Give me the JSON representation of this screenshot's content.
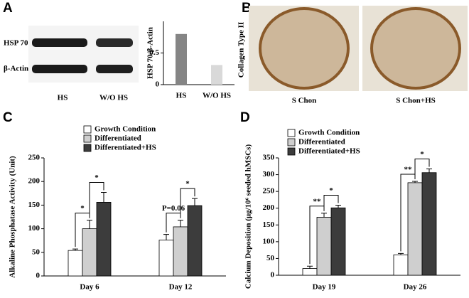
{
  "panel_labels": [
    "A",
    "B",
    "C",
    "D"
  ],
  "blot": {
    "rows": [
      "HSP 70",
      "β-Actin"
    ],
    "lanes": [
      "HS",
      "W/O HS"
    ]
  },
  "images": {
    "ylabel": "Collagen Type II",
    "captions": [
      "S Chon",
      "S Chon+HS"
    ]
  },
  "chart_data": [
    {
      "type": "bar",
      "ylabel": "HSP 70/β-Actin",
      "categories": [
        "HS",
        "W/O HS"
      ],
      "values": [
        0.8,
        0.31
      ],
      "colors": [
        "#858585",
        "#d9d9d9"
      ],
      "ylim": [
        0,
        1
      ],
      "yticks": [
        0,
        0.5
      ]
    },
    {
      "type": "grouped-bar",
      "ylabel": "Alkaline Phosphatase Activity (Unit)",
      "categories": [
        "Day 6",
        "Day 12"
      ],
      "series": [
        {
          "name": "Growth Condition",
          "color": "#ffffff",
          "values": [
            54,
            76
          ],
          "errors": [
            3,
            12
          ]
        },
        {
          "name": "Differentiated",
          "color": "#cfcfcf",
          "values": [
            100,
            104
          ],
          "errors": [
            18,
            14
          ]
        },
        {
          "name": "Differentiated+HS",
          "color": "#3c3c3c",
          "values": [
            156,
            149
          ],
          "errors": [
            21,
            15
          ]
        }
      ],
      "annotations": [
        "*",
        "*",
        "P=0.06",
        "*"
      ],
      "ylim": [
        0,
        250
      ],
      "yticks": [
        0,
        50,
        100,
        150,
        200,
        250
      ]
    },
    {
      "type": "grouped-bar",
      "ylabel": "Calcium Deposition (μg/10⁶ seeded hMSCs)",
      "categories": [
        "Day 19",
        "Day 26"
      ],
      "series": [
        {
          "name": "Growth Condition",
          "color": "#ffffff",
          "values": [
            20,
            61
          ],
          "errors": [
            7,
            4
          ]
        },
        {
          "name": "Differentiated",
          "color": "#cfcfcf",
          "values": [
            173,
            276
          ],
          "errors": [
            12,
            4
          ]
        },
        {
          "name": "Differentiated+HS",
          "color": "#3c3c3c",
          "values": [
            201,
            306
          ],
          "errors": [
            8,
            11
          ]
        }
      ],
      "annotations": [
        "**",
        "*",
        "**",
        "*"
      ],
      "ylim": [
        0,
        350
      ],
      "yticks": [
        0,
        50,
        100,
        150,
        200,
        250,
        300,
        350
      ]
    }
  ]
}
